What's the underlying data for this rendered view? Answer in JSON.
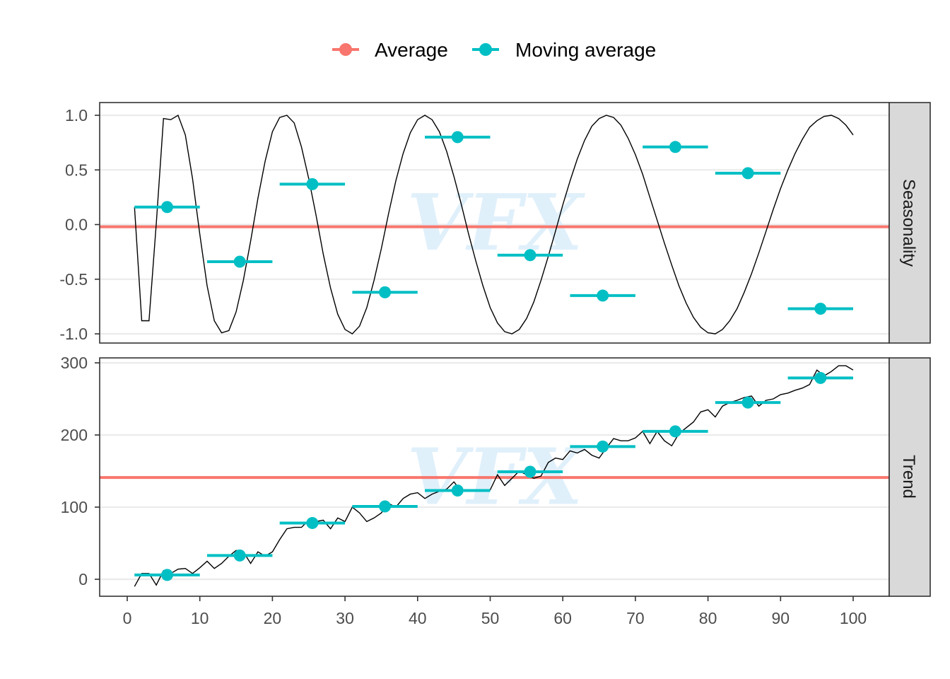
{
  "legend": {
    "items": [
      {
        "label": "Average",
        "color": "#F8766D"
      },
      {
        "label": "Moving average",
        "color": "#00BFC4"
      }
    ]
  },
  "watermark": "VFX",
  "chart_data": [
    {
      "type": "line",
      "panel": "Seasonality",
      "xlim": [
        0,
        100
      ],
      "ylim": [
        -1.0,
        1.0
      ],
      "y_ticks": [
        "1.0",
        "0.5",
        "0.0",
        "-0.5",
        "-1.0"
      ],
      "x_ticks": [
        "0",
        "10",
        "20",
        "30",
        "40",
        "50",
        "60",
        "70",
        "80",
        "90",
        "100"
      ],
      "grid": true,
      "series": [
        {
          "name": "Average",
          "color": "#F8766D",
          "style": "hline",
          "value": -0.02
        },
        {
          "name": "Moving average",
          "color": "#00BFC4",
          "style": "segments",
          "segments": [
            {
              "x0": 1,
              "x1": 10,
              "y": 0.16
            },
            {
              "x0": 11,
              "x1": 20,
              "y": -0.34
            },
            {
              "x0": 21,
              "x1": 30,
              "y": 0.37
            },
            {
              "x0": 31,
              "x1": 40,
              "y": -0.62
            },
            {
              "x0": 41,
              "x1": 50,
              "y": 0.8
            },
            {
              "x0": 51,
              "x1": 60,
              "y": -0.28
            },
            {
              "x0": 61,
              "x1": 70,
              "y": -0.65
            },
            {
              "x0": 71,
              "x1": 80,
              "y": 0.71
            },
            {
              "x0": 81,
              "x1": 90,
              "y": 0.47
            },
            {
              "x0": 91,
              "x1": 100,
              "y": -0.77
            }
          ]
        },
        {
          "name": "",
          "color": "#000000",
          "style": "line",
          "x": [
            1,
            2,
            3,
            4,
            5,
            6,
            7,
            8,
            9,
            10,
            11,
            12,
            13,
            14,
            15,
            16,
            17,
            18,
            19,
            20,
            21,
            22,
            23,
            24,
            25,
            26,
            27,
            28,
            29,
            30,
            31,
            32,
            33,
            34,
            35,
            36,
            37,
            38,
            39,
            40,
            41,
            42,
            43,
            44,
            45,
            46,
            47,
            48,
            49,
            50,
            51,
            52,
            53,
            54,
            55,
            56,
            57,
            58,
            59,
            60,
            61,
            62,
            63,
            64,
            65,
            66,
            67,
            68,
            69,
            70,
            71,
            72,
            73,
            74,
            75,
            76,
            77,
            78,
            79,
            80,
            81,
            82,
            83,
            84,
            85,
            86,
            87,
            88,
            89,
            90,
            91,
            92,
            93,
            94,
            95,
            96,
            97,
            98,
            99,
            100
          ],
          "y": [
            0.16,
            -0.88,
            -0.88,
            0.01,
            0.97,
            0.96,
            1.0,
            0.82,
            0.42,
            -0.09,
            -0.56,
            -0.88,
            -0.99,
            -0.97,
            -0.8,
            -0.51,
            -0.15,
            0.24,
            0.58,
            0.85,
            0.98,
            1.0,
            0.93,
            0.71,
            0.42,
            0.09,
            -0.27,
            -0.58,
            -0.82,
            -0.96,
            -1.0,
            -0.93,
            -0.76,
            -0.51,
            -0.22,
            0.1,
            0.4,
            0.65,
            0.84,
            0.96,
            1.0,
            0.96,
            0.85,
            0.67,
            0.44,
            0.19,
            -0.08,
            -0.33,
            -0.56,
            -0.76,
            -0.9,
            -0.98,
            -1.0,
            -0.96,
            -0.86,
            -0.71,
            -0.51,
            -0.29,
            -0.06,
            0.18,
            0.4,
            0.6,
            0.77,
            0.9,
            0.97,
            1.0,
            0.98,
            0.91,
            0.79,
            0.64,
            0.46,
            0.25,
            0.04,
            -0.17,
            -0.37,
            -0.56,
            -0.72,
            -0.85,
            -0.94,
            -0.99,
            -1.0,
            -0.96,
            -0.88,
            -0.77,
            -0.62,
            -0.45,
            -0.26,
            -0.06,
            0.14,
            0.33,
            0.5,
            0.65,
            0.78,
            0.89,
            0.95,
            0.99,
            1.0,
            0.97,
            0.91,
            0.82
          ]
        }
      ]
    },
    {
      "type": "line",
      "panel": "Trend",
      "xlim": [
        0,
        100
      ],
      "ylim": [
        0,
        300
      ],
      "y_ticks": [
        "300",
        "200",
        "100",
        "0"
      ],
      "x_ticks": [
        "0",
        "10",
        "20",
        "30",
        "40",
        "50",
        "60",
        "70",
        "80",
        "90",
        "100"
      ],
      "grid": true,
      "series": [
        {
          "name": "Average",
          "color": "#F8766D",
          "style": "hline",
          "value": 141
        },
        {
          "name": "Moving average",
          "color": "#00BFC4",
          "style": "segments",
          "segments": [
            {
              "x0": 1,
              "x1": 10,
              "y": 6
            },
            {
              "x0": 11,
              "x1": 20,
              "y": 33
            },
            {
              "x0": 21,
              "x1": 30,
              "y": 78
            },
            {
              "x0": 31,
              "x1": 40,
              "y": 101
            },
            {
              "x0": 41,
              "x1": 50,
              "y": 123
            },
            {
              "x0": 51,
              "x1": 60,
              "y": 149
            },
            {
              "x0": 61,
              "x1": 70,
              "y": 184
            },
            {
              "x0": 71,
              "x1": 80,
              "y": 205
            },
            {
              "x0": 81,
              "x1": 90,
              "y": 245
            },
            {
              "x0": 91,
              "x1": 100,
              "y": 279
            }
          ]
        },
        {
          "name": "",
          "color": "#000000",
          "style": "line",
          "x": [
            1,
            2,
            3,
            4,
            5,
            6,
            7,
            8,
            9,
            10,
            11,
            12,
            13,
            14,
            15,
            16,
            17,
            18,
            19,
            20,
            21,
            22,
            23,
            24,
            25,
            26,
            27,
            28,
            29,
            30,
            31,
            32,
            33,
            34,
            35,
            36,
            37,
            38,
            39,
            40,
            41,
            42,
            43,
            44,
            45,
            46,
            47,
            48,
            49,
            50,
            51,
            52,
            53,
            54,
            55,
            56,
            57,
            58,
            59,
            60,
            61,
            62,
            63,
            64,
            65,
            66,
            67,
            68,
            69,
            70,
            71,
            72,
            73,
            74,
            75,
            76,
            77,
            78,
            79,
            80,
            81,
            82,
            83,
            84,
            85,
            86,
            87,
            88,
            89,
            90,
            91,
            92,
            93,
            94,
            95,
            96,
            97,
            98,
            99,
            100
          ],
          "y": [
            -10,
            8,
            8,
            -8,
            12,
            8,
            14,
            15,
            8,
            16,
            25,
            15,
            22,
            32,
            40,
            38,
            22,
            38,
            32,
            38,
            55,
            70,
            72,
            72,
            82,
            80,
            82,
            70,
            85,
            80,
            100,
            92,
            80,
            85,
            92,
            105,
            100,
            112,
            118,
            120,
            112,
            118,
            122,
            125,
            135,
            122,
            124,
            123,
            124,
            124,
            145,
            130,
            140,
            150,
            145,
            140,
            143,
            162,
            168,
            166,
            178,
            175,
            180,
            172,
            168,
            182,
            195,
            192,
            192,
            196,
            205,
            188,
            205,
            192,
            185,
            202,
            210,
            218,
            232,
            235,
            225,
            240,
            245,
            248,
            252,
            254,
            240,
            248,
            250,
            256,
            258,
            262,
            265,
            270,
            290,
            282,
            288,
            296,
            296,
            290
          ]
        }
      ]
    }
  ]
}
